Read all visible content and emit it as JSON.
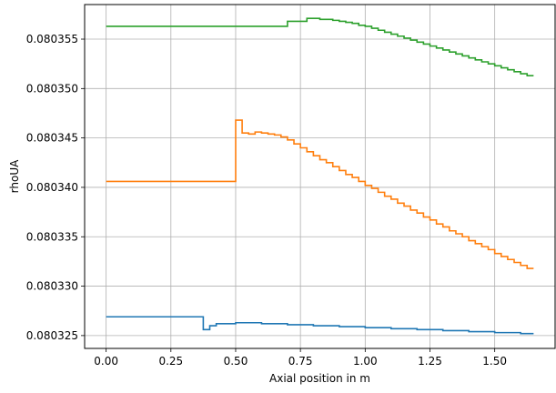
{
  "chart_data": {
    "type": "line",
    "step": true,
    "xlabel": "Axial position in m",
    "ylabel": "rhoUA",
    "xlim": [
      -0.083,
      1.733
    ],
    "ylim": [
      0.0803237,
      0.0803585
    ],
    "grid": true,
    "x_ticks": [
      0.0,
      0.25,
      0.5,
      0.75,
      1.0,
      1.25,
      1.5
    ],
    "x_tick_labels": [
      "0.00",
      "0.25",
      "0.50",
      "0.75",
      "1.00",
      "1.25",
      "1.50"
    ],
    "y_ticks": [
      0.080325,
      0.08033,
      0.080335,
      0.08034,
      0.080345,
      0.08035,
      0.080355
    ],
    "y_tick_labels": [
      "0.080325",
      "0.080330",
      "0.080335",
      "0.080340",
      "0.080345",
      "0.080350",
      "0.080355"
    ],
    "series": [
      {
        "color": "#1f77b4",
        "x": [
          0.0,
          0.375,
          0.375,
          0.4,
          0.4,
          0.425,
          0.425,
          0.5,
          0.5,
          0.6,
          0.6,
          0.7,
          0.7,
          0.8,
          0.8,
          0.9,
          0.9,
          1.0,
          1.0,
          1.1,
          1.1,
          1.2,
          1.2,
          1.3,
          1.3,
          1.4,
          1.4,
          1.5,
          1.5,
          1.6,
          1.6,
          1.65
        ],
        "y": [
          0.0803269,
          0.0803269,
          0.0803256,
          0.0803256,
          0.080326,
          0.080326,
          0.0803262,
          0.0803262,
          0.0803263,
          0.0803263,
          0.0803262,
          0.0803262,
          0.0803261,
          0.0803261,
          0.080326,
          0.080326,
          0.0803259,
          0.0803259,
          0.0803258,
          0.0803258,
          0.0803257,
          0.0803257,
          0.0803256,
          0.0803256,
          0.0803255,
          0.0803255,
          0.0803254,
          0.0803254,
          0.0803253,
          0.0803253,
          0.0803252,
          0.0803252
        ]
      },
      {
        "color": "#ff7f0e",
        "x": [
          0.0,
          0.5,
          0.5,
          0.5,
          0.5,
          0.525,
          0.525,
          0.55,
          0.55,
          0.575,
          0.575,
          0.6,
          0.6,
          0.625,
          0.625,
          0.65,
          0.65,
          0.675,
          0.675,
          0.7,
          0.7,
          0.725,
          0.725,
          0.75,
          0.75,
          0.775,
          0.775,
          0.8,
          0.8,
          0.825,
          0.825,
          0.85,
          0.85,
          0.875,
          0.875,
          0.9,
          0.9,
          0.925,
          0.925,
          0.95,
          0.95,
          0.975,
          0.975,
          1.0,
          1.0,
          1.025,
          1.025,
          1.05,
          1.05,
          1.075,
          1.075,
          1.1,
          1.1,
          1.125,
          1.125,
          1.15,
          1.15,
          1.175,
          1.175,
          1.2,
          1.2,
          1.225,
          1.225,
          1.25,
          1.25,
          1.275,
          1.275,
          1.3,
          1.3,
          1.325,
          1.325,
          1.35,
          1.35,
          1.375,
          1.375,
          1.4,
          1.4,
          1.425,
          1.425,
          1.45,
          1.45,
          1.475,
          1.475,
          1.5,
          1.5,
          1.525,
          1.525,
          1.55,
          1.55,
          1.575,
          1.575,
          1.6,
          1.6,
          1.625,
          1.625,
          1.65
        ],
        "y": [
          0.0803406,
          0.0803406,
          0.0803406,
          0.0803468,
          0.0803468,
          0.0803468,
          0.0803455,
          0.0803455,
          0.0803454,
          0.0803454,
          0.0803456,
          0.0803456,
          0.0803455,
          0.0803455,
          0.0803454,
          0.0803454,
          0.0803453,
          0.0803453,
          0.0803451,
          0.0803451,
          0.0803448,
          0.0803448,
          0.0803444,
          0.0803444,
          0.080344,
          0.080344,
          0.0803436,
          0.0803436,
          0.0803432,
          0.0803432,
          0.0803428,
          0.0803428,
          0.0803425,
          0.0803425,
          0.0803421,
          0.0803421,
          0.0803417,
          0.0803417,
          0.0803413,
          0.0803413,
          0.080341,
          0.080341,
          0.0803406,
          0.0803406,
          0.0803402,
          0.0803402,
          0.0803399,
          0.0803399,
          0.0803395,
          0.0803395,
          0.0803391,
          0.0803391,
          0.0803388,
          0.0803388,
          0.0803384,
          0.0803384,
          0.0803381,
          0.0803381,
          0.0803377,
          0.0803377,
          0.0803374,
          0.0803374,
          0.080337,
          0.080337,
          0.0803367,
          0.0803367,
          0.0803363,
          0.0803363,
          0.080336,
          0.080336,
          0.0803356,
          0.0803356,
          0.0803353,
          0.0803353,
          0.080335,
          0.080335,
          0.0803346,
          0.0803346,
          0.0803343,
          0.0803343,
          0.080334,
          0.080334,
          0.0803337,
          0.0803337,
          0.0803333,
          0.0803333,
          0.080333,
          0.080333,
          0.0803327,
          0.0803327,
          0.0803324,
          0.0803324,
          0.0803321,
          0.0803321,
          0.0803318,
          0.0803318
        ]
      },
      {
        "color": "#2ca02c",
        "x": [
          0.0,
          0.7,
          0.7,
          0.775,
          0.775,
          0.825,
          0.825,
          0.875,
          0.875,
          0.9,
          0.9,
          0.925,
          0.925,
          0.95,
          0.95,
          0.975,
          0.975,
          1.0,
          1.0,
          1.025,
          1.025,
          1.05,
          1.05,
          1.075,
          1.075,
          1.1,
          1.1,
          1.125,
          1.125,
          1.15,
          1.15,
          1.175,
          1.175,
          1.2,
          1.2,
          1.225,
          1.225,
          1.25,
          1.25,
          1.275,
          1.275,
          1.3,
          1.3,
          1.325,
          1.325,
          1.35,
          1.35,
          1.375,
          1.375,
          1.4,
          1.4,
          1.425,
          1.425,
          1.45,
          1.45,
          1.475,
          1.475,
          1.5,
          1.5,
          1.525,
          1.525,
          1.55,
          1.55,
          1.575,
          1.575,
          1.6,
          1.6,
          1.625,
          1.625,
          1.65
        ],
        "y": [
          0.0803563,
          0.0803563,
          0.0803568,
          0.0803568,
          0.0803571,
          0.0803571,
          0.080357,
          0.080357,
          0.0803569,
          0.0803569,
          0.0803568,
          0.0803568,
          0.0803567,
          0.0803567,
          0.0803566,
          0.0803566,
          0.0803564,
          0.0803564,
          0.0803563,
          0.0803563,
          0.0803561,
          0.0803561,
          0.0803559,
          0.0803559,
          0.0803557,
          0.0803557,
          0.0803555,
          0.0803555,
          0.0803553,
          0.0803553,
          0.0803551,
          0.0803551,
          0.0803549,
          0.0803549,
          0.0803547,
          0.0803547,
          0.0803545,
          0.0803545,
          0.0803543,
          0.0803543,
          0.0803541,
          0.0803541,
          0.0803539,
          0.0803539,
          0.0803537,
          0.0803537,
          0.0803535,
          0.0803535,
          0.0803533,
          0.0803533,
          0.0803531,
          0.0803531,
          0.0803529,
          0.0803529,
          0.0803527,
          0.0803527,
          0.0803525,
          0.0803525,
          0.0803523,
          0.0803523,
          0.0803521,
          0.0803521,
          0.0803519,
          0.0803519,
          0.0803517,
          0.0803517,
          0.0803515,
          0.0803515,
          0.0803513,
          0.0803513
        ]
      }
    ]
  }
}
